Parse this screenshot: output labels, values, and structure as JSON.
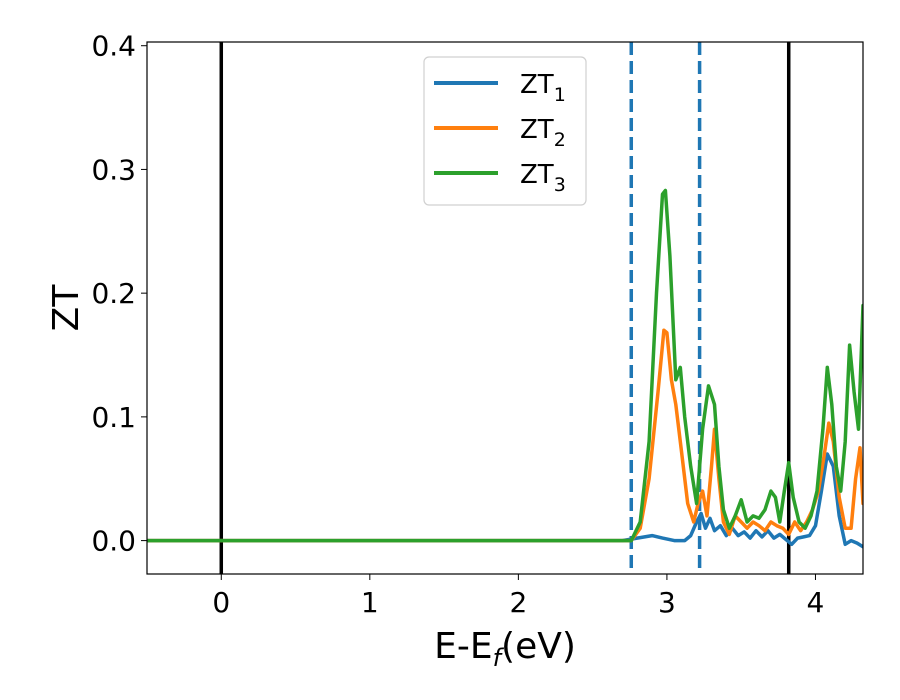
{
  "chart_data": {
    "type": "line",
    "xlabel": "E-E",
    "xlabel_sub": "f",
    "xlabel_unit": "(eV)",
    "ylabel": "ZT",
    "xlim": [
      -0.5,
      4.32
    ],
    "ylim": [
      -0.027,
      0.403
    ],
    "xticks": [
      0,
      1,
      2,
      3,
      4
    ],
    "xtick_labels": [
      "0",
      "1",
      "2",
      "3",
      "4"
    ],
    "yticks": [
      0.0,
      0.1,
      0.2,
      0.3,
      0.4
    ],
    "ytick_labels": [
      "0.0",
      "0.1",
      "0.2",
      "0.3",
      "0.4"
    ],
    "grid": false,
    "legend_position": "top-center",
    "vlines": [
      {
        "x": 0.0,
        "style": "solid",
        "color": "#000000"
      },
      {
        "x": 3.82,
        "style": "solid",
        "color": "#000000"
      },
      {
        "x": 2.76,
        "style": "dashed",
        "color": "#1f77b4"
      },
      {
        "x": 3.22,
        "style": "dashed",
        "color": "#1f77b4"
      }
    ],
    "series": [
      {
        "name": "ZT",
        "sub": "1",
        "color": "#1f77b4",
        "points": [
          [
            -0.5,
            0
          ],
          [
            2.7,
            0
          ],
          [
            2.8,
            0.002
          ],
          [
            2.9,
            0.004
          ],
          [
            2.97,
            0.002
          ],
          [
            3.05,
            0
          ],
          [
            3.12,
            0
          ],
          [
            3.16,
            0.004
          ],
          [
            3.2,
            0.015
          ],
          [
            3.23,
            0.022
          ],
          [
            3.26,
            0.01
          ],
          [
            3.29,
            0.018
          ],
          [
            3.32,
            0.008
          ],
          [
            3.36,
            0.012
          ],
          [
            3.4,
            0.004
          ],
          [
            3.44,
            0.01
          ],
          [
            3.48,
            0.004
          ],
          [
            3.52,
            0.007
          ],
          [
            3.56,
            0.002
          ],
          [
            3.6,
            0.008
          ],
          [
            3.64,
            0.003
          ],
          [
            3.68,
            0.008
          ],
          [
            3.72,
            0.002
          ],
          [
            3.76,
            0.005
          ],
          [
            3.8,
            0.001
          ],
          [
            3.84,
            -0.003
          ],
          [
            3.88,
            0.002
          ],
          [
            3.92,
            0.003
          ],
          [
            3.96,
            0.004
          ],
          [
            4.0,
            0.012
          ],
          [
            4.04,
            0.04
          ],
          [
            4.08,
            0.07
          ],
          [
            4.12,
            0.06
          ],
          [
            4.16,
            0.02
          ],
          [
            4.2,
            -0.003
          ],
          [
            4.24,
            0.0
          ],
          [
            4.28,
            -0.002
          ],
          [
            4.32,
            -0.005
          ]
        ]
      },
      {
        "name": "ZT",
        "sub": "2",
        "color": "#ff7f0e",
        "points": [
          [
            -0.5,
            0
          ],
          [
            2.76,
            0
          ],
          [
            2.82,
            0.01
          ],
          [
            2.88,
            0.05
          ],
          [
            2.94,
            0.12
          ],
          [
            2.98,
            0.17
          ],
          [
            3.0,
            0.168
          ],
          [
            3.03,
            0.13
          ],
          [
            3.06,
            0.11
          ],
          [
            3.1,
            0.07
          ],
          [
            3.14,
            0.03
          ],
          [
            3.18,
            0.015
          ],
          [
            3.21,
            0.03
          ],
          [
            3.24,
            0.04
          ],
          [
            3.27,
            0.02
          ],
          [
            3.3,
            0.06
          ],
          [
            3.32,
            0.09
          ],
          [
            3.35,
            0.05
          ],
          [
            3.38,
            0.015
          ],
          [
            3.42,
            0.005
          ],
          [
            3.46,
            0.02
          ],
          [
            3.5,
            0.015
          ],
          [
            3.54,
            0.01
          ],
          [
            3.58,
            0.015
          ],
          [
            3.62,
            0.012
          ],
          [
            3.66,
            0.008
          ],
          [
            3.7,
            0.015
          ],
          [
            3.74,
            0.012
          ],
          [
            3.78,
            0.01
          ],
          [
            3.82,
            0.005
          ],
          [
            3.86,
            0.015
          ],
          [
            3.9,
            0.008
          ],
          [
            3.94,
            0.015
          ],
          [
            3.98,
            0.025
          ],
          [
            4.02,
            0.04
          ],
          [
            4.06,
            0.07
          ],
          [
            4.09,
            0.095
          ],
          [
            4.12,
            0.08
          ],
          [
            4.16,
            0.035
          ],
          [
            4.2,
            0.01
          ],
          [
            4.24,
            0.01
          ],
          [
            4.27,
            0.05
          ],
          [
            4.3,
            0.075
          ],
          [
            4.32,
            0.03
          ]
        ]
      },
      {
        "name": "ZT",
        "sub": "3",
        "color": "#2ca02c",
        "points": [
          [
            -0.5,
            0
          ],
          [
            2.76,
            0
          ],
          [
            2.82,
            0.015
          ],
          [
            2.88,
            0.08
          ],
          [
            2.93,
            0.2
          ],
          [
            2.97,
            0.28
          ],
          [
            2.99,
            0.283
          ],
          [
            3.02,
            0.23
          ],
          [
            3.06,
            0.13
          ],
          [
            3.09,
            0.14
          ],
          [
            3.12,
            0.1
          ],
          [
            3.16,
            0.06
          ],
          [
            3.2,
            0.03
          ],
          [
            3.24,
            0.09
          ],
          [
            3.28,
            0.125
          ],
          [
            3.32,
            0.11
          ],
          [
            3.35,
            0.06
          ],
          [
            3.38,
            0.025
          ],
          [
            3.42,
            0.01
          ],
          [
            3.46,
            0.02
          ],
          [
            3.5,
            0.033
          ],
          [
            3.54,
            0.015
          ],
          [
            3.58,
            0.02
          ],
          [
            3.62,
            0.018
          ],
          [
            3.66,
            0.025
          ],
          [
            3.7,
            0.04
          ],
          [
            3.73,
            0.035
          ],
          [
            3.76,
            0.015
          ],
          [
            3.79,
            0.04
          ],
          [
            3.82,
            0.063
          ],
          [
            3.85,
            0.035
          ],
          [
            3.89,
            0.015
          ],
          [
            3.93,
            0.01
          ],
          [
            3.97,
            0.02
          ],
          [
            4.01,
            0.04
          ],
          [
            4.05,
            0.09
          ],
          [
            4.08,
            0.14
          ],
          [
            4.11,
            0.11
          ],
          [
            4.14,
            0.06
          ],
          [
            4.17,
            0.04
          ],
          [
            4.2,
            0.08
          ],
          [
            4.23,
            0.158
          ],
          [
            4.26,
            0.12
          ],
          [
            4.29,
            0.09
          ],
          [
            4.32,
            0.19
          ]
        ]
      }
    ]
  }
}
